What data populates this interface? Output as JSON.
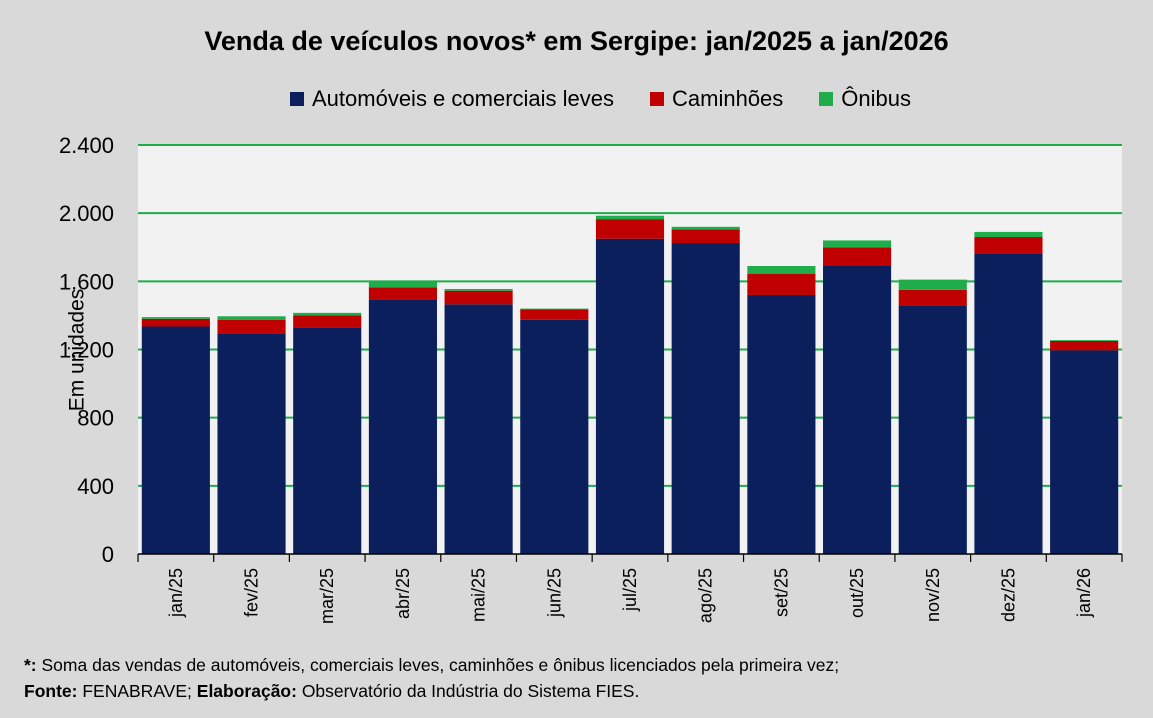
{
  "chart_data": {
    "type": "bar",
    "stacked": true,
    "title": "Venda de veículos novos* em Sergipe: jan/2025 a jan/2026",
    "ylabel": "Em unidades",
    "xlabel": "",
    "ylim": [
      0,
      2400
    ],
    "yticks": [
      0,
      400,
      800,
      1200,
      1600,
      2000,
      2400
    ],
    "ytick_labels": [
      "0",
      "400",
      "800",
      "1.200",
      "1.600",
      "2.000",
      "2.400"
    ],
    "grid": true,
    "legend_position": "top",
    "categories": [
      "jan/25",
      "fev/25",
      "mar/25",
      "abr/25",
      "mai/25",
      "jun/25",
      "jul/25",
      "ago/25",
      "set/25",
      "out/25",
      "nov/25",
      "dez/25",
      "jan/26"
    ],
    "series": [
      {
        "name": "Automóveis e comerciais leves",
        "color": "#0a1f5c",
        "values": [
          1335,
          1295,
          1330,
          1495,
          1465,
          1375,
          1850,
          1825,
          1520,
          1690,
          1460,
          1765,
          1195
        ]
      },
      {
        "name": "Caminhões",
        "color": "#c00000",
        "values": [
          45,
          80,
          70,
          70,
          80,
          60,
          115,
          80,
          125,
          110,
          90,
          95,
          55
        ]
      },
      {
        "name": "Ônibus",
        "color": "#1fad4b",
        "values": [
          10,
          20,
          15,
          40,
          10,
          5,
          20,
          15,
          45,
          40,
          60,
          30,
          5
        ]
      }
    ]
  },
  "footnotes": {
    "line1_mark": "*:",
    "line1_text": " Soma das vendas de automóveis, comerciais leves, caminhões e ônibus licenciados pela primeira vez;",
    "line2_fonte_label": "Fonte:",
    "line2_fonte_text": " FENABRAVE; ",
    "line2_elab_label": "Elaboração:",
    "line2_elab_text": " Observatório da Indústria do Sistema FIES."
  }
}
